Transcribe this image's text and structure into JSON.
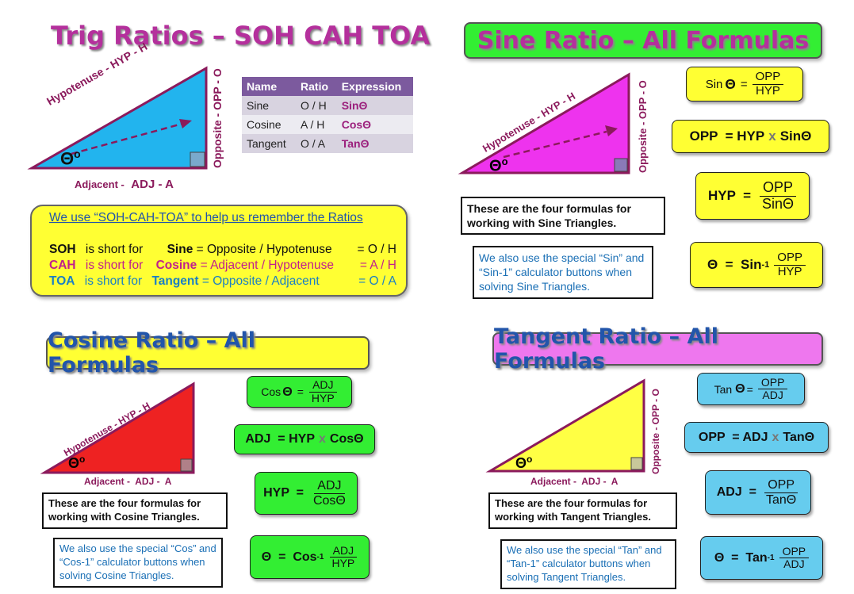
{
  "colors": {
    "purple_title": "#b4309c",
    "blue_title": "#2255aa",
    "green": "#33ee33",
    "yellow": "#ffff33",
    "blue_box": "#66ccee",
    "pink_box": "#ee77ee",
    "cyan_tri": "#22b4ee",
    "magenta_tri": "#ee33ee",
    "red_tri": "#ee2222",
    "yellow_tri": "#ffff44",
    "maroon_label": "#8b1a5c"
  },
  "trig": {
    "title": "Trig Ratios – SOH CAH TOA",
    "hyp_label": "Hypotenuse  -  HYP  -  H",
    "opp_label": "Opposite  -  OPP  -  O",
    "adj_prefix": "Adjacent -",
    "adj_label": "ADJ  -  A",
    "theta": "Θ",
    "degree": "o",
    "table": {
      "headers": [
        "Name",
        "Ratio",
        "Expression"
      ],
      "rows": [
        {
          "name": "Sine",
          "ratio": "O / H",
          "expr": "SinΘ"
        },
        {
          "name": "Cosine",
          "ratio": "A / H",
          "expr": "CosΘ"
        },
        {
          "name": "Tangent",
          "ratio": "O / A",
          "expr": "TanΘ"
        }
      ]
    },
    "soh": {
      "heading": "We use “SOH-CAH-TOA” to help us remember the Ratios",
      "rows": [
        {
          "abbr": "SOH",
          "short": "is short for",
          "func": "Sine",
          "def": "= Opposite / Hypotenuse",
          "rhs": "= O / H"
        },
        {
          "abbr": "CAH",
          "short": "is short for",
          "func": "Cosine",
          "def": "= Adjacent  / Hypotenuse",
          "rhs": "= A / H"
        },
        {
          "abbr": "TOA",
          "short": "is short for",
          "func": "Tangent",
          "def": "= Opposite  / Adjacent",
          "rhs": "= O / A"
        }
      ]
    }
  },
  "sine": {
    "title": "Sine Ratio – All Formulas",
    "hyp_label": "Hypotenuse  -  HYP  -  H",
    "opp_label": "Opposite  -  OPP  -  O",
    "theta": "Θ",
    "degree": "o",
    "f1_label": "Sin",
    "f1_theta": "Θ",
    "f1_eq": "=",
    "f1_num": "OPP",
    "f1_den": "HYP",
    "f2_text": "OPP  = HYP",
    "f2_x": "x",
    "f2_end": "SinΘ",
    "f3_lhs": "HYP  =",
    "f3_num": "OPP",
    "f3_den": "SinΘ",
    "f4_lhs": "Θ  =  Sin",
    "f4_sup": "-1",
    "f4_num": "OPP",
    "f4_den": "HYP",
    "note_bold": "These are the four formulas for working with Sine Triangles.",
    "note_blue": "We also use the special “Sin” and “Sin-1” calculator buttons when solving Sine Triangles."
  },
  "cosine": {
    "title": "Cosine Ratio – All Formulas",
    "hyp_label": "Hypotenuse  -  HYP  -  H",
    "adj_label": "Adjacent -  ADJ -  A",
    "theta": "Θ",
    "degree": "o",
    "f1_label": "Cos",
    "f1_theta": "Θ",
    "f1_eq": "=",
    "f1_num": "ADJ",
    "f1_den": "HYP",
    "f2_text": "ADJ  = HYP",
    "f2_x": "x",
    "f2_end": "CosΘ",
    "f3_lhs": "HYP  =",
    "f3_num": "ADJ",
    "f3_den": "CosΘ",
    "f4_lhs": "Θ  =  Cos",
    "f4_sup": "-1",
    "f4_num": "ADJ",
    "f4_den": "HYP",
    "note_bold": "These are the four formulas for working with Cosine Triangles.",
    "note_blue": "We also use the special “Cos” and “Cos-1” calculator buttons when solving Cosine Triangles."
  },
  "tangent": {
    "title": "Tangent Ratio – All Formulas",
    "opp_label": "Opposite - OPP - O",
    "adj_label": "Adjacent -  ADJ -  A",
    "theta": "Θ",
    "degree": "o",
    "f1_label": "Tan",
    "f1_theta": "Θ",
    "f1_eq": "=",
    "f1_num": "OPP",
    "f1_den": "ADJ",
    "f2_text": "OPP  = ADJ",
    "f2_x": "x",
    "f2_end": "TanΘ",
    "f3_lhs": "ADJ  =",
    "f3_num": "OPP",
    "f3_den": "TanΘ",
    "f4_lhs": "Θ  =  Tan",
    "f4_sup": "-1",
    "f4_num": "OPP",
    "f4_den": "ADJ",
    "note_bold": "These are the four formulas for working with Tangent Triangles.",
    "note_blue": "We also use the special “Tan” and “Tan-1” calculator buttons when solving Tangent Triangles."
  }
}
